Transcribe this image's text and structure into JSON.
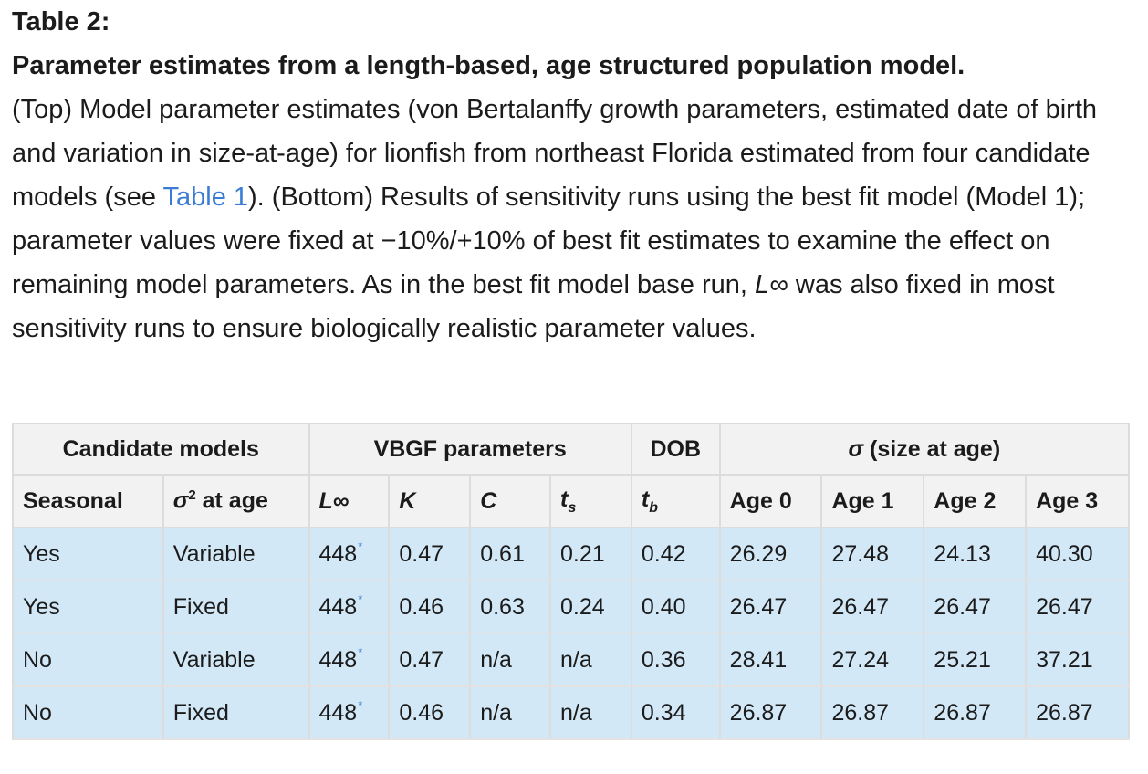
{
  "caption": {
    "label": "Table 2:",
    "title": "Parameter estimates from a length-based, age structured population model.",
    "body_part1": "(Top) Model parameter estimates (von Bertalanffy growth parameters, estimated date of birth and variation in size-at-age) for lionfish from northeast Florida estimated from four candidate models (see ",
    "link": "Table 1",
    "body_part2": "). (Bottom) Results of sensitivity runs using the best fit model (Model 1); parameter values were fixed at −10%/+10% of best fit estimates to examine the effect on remaining model parameters. As in the best fit model base run, ",
    "linf_symbol": "L∞",
    "body_part3": " was also fixed in most sensitivity runs to ensure biologically realistic parameter values."
  },
  "table": {
    "group_headers": [
      "Candidate models",
      "VBGF parameters",
      "DOB",
      "σ (size at age)"
    ],
    "columns": [
      "Seasonal",
      "σ² at age",
      "L∞",
      "K",
      "C",
      "ts",
      "tb",
      "Age 0",
      "Age 1",
      "Age 2",
      "Age 3"
    ],
    "footnote_marker": "*",
    "rows": [
      [
        "Yes",
        "Variable",
        "448",
        "0.47",
        "0.61",
        "0.21",
        "0.42",
        "26.29",
        "27.48",
        "24.13",
        "40.30"
      ],
      [
        "Yes",
        "Fixed",
        "448",
        "0.46",
        "0.63",
        "0.24",
        "0.40",
        "26.47",
        "26.47",
        "26.47",
        "26.47"
      ],
      [
        "No",
        "Variable",
        "448",
        "0.47",
        "n/a",
        "n/a",
        "0.36",
        "28.41",
        "27.24",
        "25.21",
        "37.21"
      ],
      [
        "No",
        "Fixed",
        "448",
        "0.46",
        "n/a",
        "n/a",
        "0.34",
        "26.87",
        "26.87",
        "26.87",
        "26.87"
      ]
    ]
  }
}
